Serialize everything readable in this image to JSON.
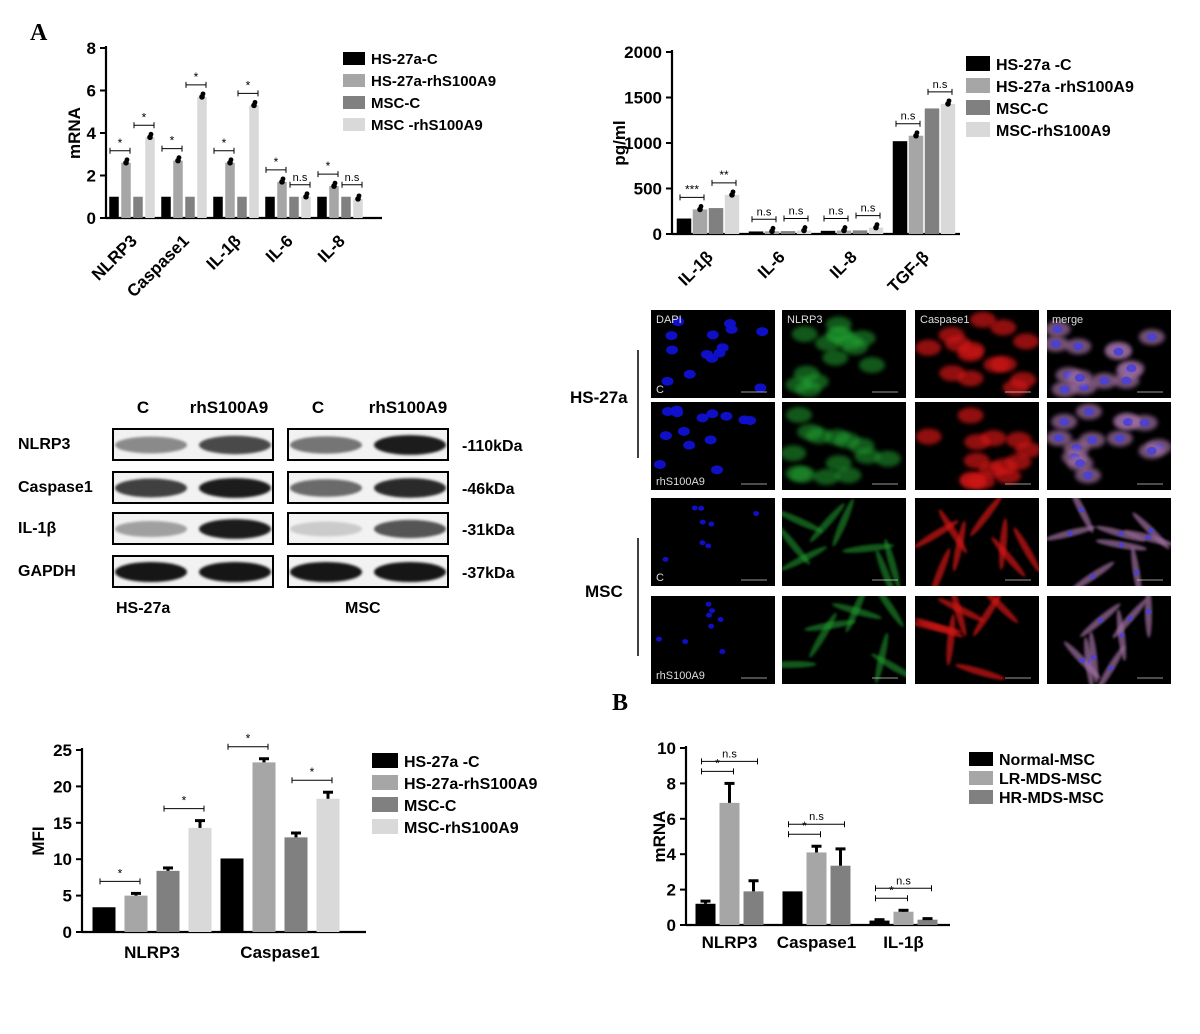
{
  "panel_labels": {
    "a": "A",
    "b": "B"
  },
  "colors": {
    "black": "#000000",
    "gray1": "#a6a6a6",
    "gray2": "#808080",
    "light": "#d9d9d9",
    "dapi": "#1010d0",
    "nlrp3": "#20a030",
    "casp": "#d01818",
    "merge": "#a070a0"
  },
  "chart_data": [
    {
      "id": "mrna-cells",
      "type": "bar",
      "ylabel": "mRNA",
      "ylim": [
        0,
        8
      ],
      "yticks": [
        "0",
        "2",
        "4",
        "6",
        "8"
      ],
      "categories": [
        "NLRP3",
        "Caspase1",
        "IL-1β",
        "IL-6",
        "IL-8"
      ],
      "series": [
        {
          "name": "HS-27a-C",
          "color": "#000000",
          "values": [
            1,
            1,
            1,
            1,
            1
          ]
        },
        {
          "name": "HS-27a-rhS100A9",
          "color": "#a6a6a6",
          "values": [
            2.6,
            2.7,
            2.6,
            1.7,
            1.5
          ]
        },
        {
          "name": "MSC-C",
          "color": "#808080",
          "values": [
            1,
            1,
            1,
            1,
            1
          ]
        },
        {
          "name": "MSC -rhS100A9",
          "color": "#d9d9d9",
          "values": [
            3.8,
            5.7,
            5.3,
            1.0,
            0.9
          ]
        }
      ],
      "significance": [
        {
          "cat": 0,
          "pair": [
            0,
            1
          ],
          "label": "*"
        },
        {
          "cat": 0,
          "pair": [
            2,
            3
          ],
          "label": "*"
        },
        {
          "cat": 1,
          "pair": [
            0,
            1
          ],
          "label": "*"
        },
        {
          "cat": 1,
          "pair": [
            2,
            3
          ],
          "label": "*"
        },
        {
          "cat": 2,
          "pair": [
            0,
            1
          ],
          "label": "*"
        },
        {
          "cat": 2,
          "pair": [
            2,
            3
          ],
          "label": "*"
        },
        {
          "cat": 3,
          "pair": [
            0,
            1
          ],
          "label": "*"
        },
        {
          "cat": 3,
          "pair": [
            2,
            3
          ],
          "label": "n.s"
        },
        {
          "cat": 4,
          "pair": [
            0,
            1
          ],
          "label": "*"
        },
        {
          "cat": 4,
          "pair": [
            2,
            3
          ],
          "label": "n.s"
        }
      ]
    },
    {
      "id": "elisa",
      "type": "bar",
      "ylabel": "pg/ml",
      "ylim": [
        0,
        2000
      ],
      "yticks": [
        "0",
        "500",
        "1000",
        "1500",
        "2000"
      ],
      "categories": [
        "IL-1β",
        "IL-6",
        "IL-8",
        "TGF-β"
      ],
      "series": [
        {
          "name": "HS-27a -C",
          "color": "#000000",
          "values": [
            170,
            28,
            35,
            1020
          ]
        },
        {
          "name": "HS-27a -rhS100A9",
          "color": "#a6a6a6",
          "values": [
            270,
            30,
            38,
            1080
          ]
        },
        {
          "name": "MSC-C",
          "color": "#808080",
          "values": [
            285,
            32,
            40,
            1380
          ]
        },
        {
          "name": "MSC-rhS100A9",
          "color": "#d9d9d9",
          "values": [
            430,
            38,
            70,
            1430
          ]
        }
      ],
      "significance": [
        {
          "cat": 0,
          "pair": [
            0,
            1
          ],
          "label": "***"
        },
        {
          "cat": 0,
          "pair": [
            2,
            3
          ],
          "label": "**"
        },
        {
          "cat": 1,
          "pair": [
            0,
            1
          ],
          "label": "n.s"
        },
        {
          "cat": 1,
          "pair": [
            2,
            3
          ],
          "label": "n.s"
        },
        {
          "cat": 2,
          "pair": [
            0,
            1
          ],
          "label": "n.s"
        },
        {
          "cat": 2,
          "pair": [
            2,
            3
          ],
          "label": "n.s"
        },
        {
          "cat": 3,
          "pair": [
            0,
            1
          ],
          "label": "n.s"
        },
        {
          "cat": 3,
          "pair": [
            2,
            3
          ],
          "label": "n.s"
        }
      ]
    },
    {
      "id": "mfi",
      "type": "bar",
      "ylabel": "MFI",
      "ylim": [
        0,
        25
      ],
      "yticks": [
        "0",
        "5",
        "10",
        "15",
        "20",
        "25"
      ],
      "categories": [
        "NLRP3",
        "Caspase1"
      ],
      "series": [
        {
          "name": "HS-27a -C",
          "color": "#000000",
          "values": [
            3.4,
            10.1
          ]
        },
        {
          "name": "HS-27a-rhS100A9",
          "color": "#a6a6a6",
          "values": [
            5.0,
            23.3
          ]
        },
        {
          "name": "MSC-C",
          "color": "#808080",
          "values": [
            8.4,
            13.0
          ]
        },
        {
          "name": "MSC-rhS100A9",
          "color": "#d9d9d9",
          "values": [
            14.3,
            18.3
          ]
        }
      ],
      "errors": [
        [
          0,
          0
        ],
        [
          0.3,
          0.5
        ],
        [
          0.4,
          0.6
        ],
        [
          1.0,
          0.9
        ]
      ],
      "significance": [
        {
          "cat": 0,
          "pair": [
            0,
            1
          ],
          "label": "*"
        },
        {
          "cat": 0,
          "pair": [
            2,
            3
          ],
          "label": "*"
        },
        {
          "cat": 1,
          "pair": [
            0,
            1
          ],
          "label": "*"
        },
        {
          "cat": 1,
          "pair": [
            2,
            3
          ],
          "label": "*"
        }
      ]
    },
    {
      "id": "mrna-patients",
      "type": "bar",
      "ylabel": "mRNA",
      "ylim": [
        0,
        10
      ],
      "yticks": [
        "0",
        "2",
        "4",
        "6",
        "8",
        "10"
      ],
      "categories": [
        "NLRP3",
        "Caspase1",
        "IL-1β"
      ],
      "series": [
        {
          "name": "Normal-MSC",
          "color": "#000000",
          "values": [
            1.2,
            1.9,
            0.25
          ]
        },
        {
          "name": "LR-MDS-MSC",
          "color": "#a6a6a6",
          "values": [
            6.9,
            4.1,
            0.75
          ]
        },
        {
          "name": "HR-MDS-MSC",
          "color": "#808080",
          "values": [
            1.9,
            3.35,
            0.3
          ]
        }
      ],
      "errors": [
        [
          0.15,
          0.0,
          0.05
        ],
        [
          1.1,
          0.35,
          0.08
        ],
        [
          0.6,
          0.95,
          0.06
        ]
      ],
      "significance": [
        {
          "cat": 0,
          "pair": [
            0,
            1
          ],
          "label": "*"
        },
        {
          "cat": 0,
          "pair": [
            0,
            2
          ],
          "label": "n.s"
        },
        {
          "cat": 1,
          "pair": [
            0,
            1
          ],
          "label": "*"
        },
        {
          "cat": 1,
          "pair": [
            0,
            2
          ],
          "label": "n.s"
        },
        {
          "cat": 2,
          "pair": [
            0,
            1
          ],
          "label": "*"
        },
        {
          "cat": 2,
          "pair": [
            0,
            2
          ],
          "label": "n.s"
        }
      ]
    }
  ],
  "western_blot": {
    "column_labels": [
      "C",
      "rhS100A9",
      "C",
      "rhS100A9"
    ],
    "proteins": [
      "NLRP3",
      "Caspase1",
      "IL-1β",
      "GAPDH"
    ],
    "sizes": [
      "-110kDa",
      "-46kDa",
      "-31kDa",
      "-37kDa"
    ],
    "group_labels": [
      "HS-27a",
      "MSC"
    ]
  },
  "if_panel": {
    "channels": [
      "DAPI",
      "NLRP3",
      "Caspase1",
      "merge"
    ],
    "row_groups": [
      "HS-27a",
      "MSC"
    ],
    "row_labels": [
      "C",
      "rhS100A9",
      "C",
      "rhS100A9"
    ]
  }
}
